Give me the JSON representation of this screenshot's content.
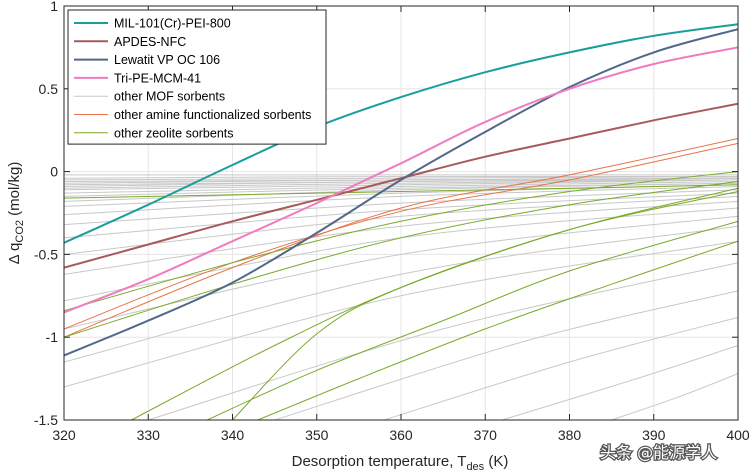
{
  "chart_data": {
    "type": "line",
    "xlabel": {
      "main": "Desorption temperature, T",
      "sub": "des",
      "unit": " (K)"
    },
    "ylabel": {
      "main": "Δ q",
      "sub": "CO2",
      "unit": " (mol/kg)"
    },
    "xlim": [
      320,
      400
    ],
    "ylim": [
      -1.5,
      1
    ],
    "xticks": [
      320,
      330,
      340,
      350,
      360,
      370,
      380,
      390,
      400
    ],
    "yticks": [
      -1.5,
      -1,
      -0.5,
      0,
      0.5,
      1
    ],
    "xtick_labels": [
      "320",
      "330",
      "340",
      "350",
      "360",
      "370",
      "380",
      "390",
      "400"
    ],
    "ytick_labels": [
      "-1.5",
      "-1",
      "-0.5",
      "0",
      "0.5",
      "1"
    ],
    "grid": true,
    "legend_position": "top-left",
    "legend": [
      {
        "label": "MIL-101(Cr)-PEI-800",
        "color": "#1a9e9a"
      },
      {
        "label": "APDES-NFC",
        "color": "#a85a5a"
      },
      {
        "label": "Lewatit VP OC 106",
        "color": "#52688a"
      },
      {
        "label": "Tri-PE-MCM-41",
        "color": "#f07cc0"
      },
      {
        "label": "other MOF sorbents",
        "color": "#c8c8c8"
      },
      {
        "label": "other amine functionalized sorbents",
        "color": "#e8734a"
      },
      {
        "label": "other zeolite sorbents",
        "color": "#7aaa2a"
      }
    ],
    "series": [
      {
        "name": "MIL-101(Cr)-PEI-800",
        "color": "#1a9e9a",
        "width": 2.0,
        "x": [
          320,
          330,
          340,
          350,
          360,
          370,
          380,
          390,
          400
        ],
        "y": [
          -0.43,
          -0.2,
          0.04,
          0.27,
          0.45,
          0.6,
          0.72,
          0.82,
          0.89
        ]
      },
      {
        "name": "APDES-NFC",
        "color": "#a85a5a",
        "width": 2.0,
        "x": [
          320,
          330,
          340,
          350,
          360,
          370,
          380,
          390,
          400
        ],
        "y": [
          -0.58,
          -0.44,
          -0.3,
          -0.17,
          -0.04,
          0.09,
          0.2,
          0.31,
          0.41
        ]
      },
      {
        "name": "Lewatit VP OC 106",
        "color": "#52688a",
        "width": 2.0,
        "x": [
          320,
          330,
          340,
          350,
          360,
          370,
          380,
          390,
          400
        ],
        "y": [
          -1.11,
          -0.9,
          -0.67,
          -0.37,
          -0.05,
          0.24,
          0.51,
          0.72,
          0.86
        ]
      },
      {
        "name": "Tri-PE-MCM-41",
        "color": "#f07cc0",
        "width": 2.0,
        "x": [
          320,
          330,
          340,
          350,
          360,
          370,
          380,
          390,
          400
        ],
        "y": [
          -0.85,
          -0.65,
          -0.42,
          -0.19,
          0.05,
          0.3,
          0.5,
          0.65,
          0.75
        ]
      },
      {
        "name": "",
        "color": "#c8c8c8",
        "width": 1.0,
        "x": [
          320,
          360,
          400
        ],
        "y": [
          -0.02,
          -0.02,
          -0.02
        ]
      },
      {
        "name": "",
        "color": "#c8c8c8",
        "width": 1.0,
        "x": [
          320,
          360,
          400
        ],
        "y": [
          -0.04,
          -0.03,
          -0.03
        ]
      },
      {
        "name": "",
        "color": "#c8c8c8",
        "width": 1.0,
        "x": [
          320,
          360,
          400
        ],
        "y": [
          -0.05,
          -0.04,
          -0.03
        ]
      },
      {
        "name": "",
        "color": "#c8c8c8",
        "width": 1.0,
        "x": [
          320,
          360,
          400
        ],
        "y": [
          -0.06,
          -0.05,
          -0.04
        ]
      },
      {
        "name": "",
        "color": "#c8c8c8",
        "width": 1.0,
        "x": [
          320,
          360,
          400
        ],
        "y": [
          -0.07,
          -0.05,
          -0.04
        ]
      },
      {
        "name": "",
        "color": "#c8c8c8",
        "width": 1.0,
        "x": [
          320,
          360,
          400
        ],
        "y": [
          -0.08,
          -0.06,
          -0.04
        ]
      },
      {
        "name": "",
        "color": "#c8c8c8",
        "width": 1.0,
        "x": [
          320,
          360,
          400
        ],
        "y": [
          -0.09,
          -0.06,
          -0.05
        ]
      },
      {
        "name": "",
        "color": "#c8c8c8",
        "width": 1.0,
        "x": [
          320,
          360,
          400
        ],
        "y": [
          -0.1,
          -0.07,
          -0.05
        ]
      },
      {
        "name": "",
        "color": "#c8c8c8",
        "width": 1.0,
        "x": [
          320,
          360,
          400
        ],
        "y": [
          -0.11,
          -0.08,
          -0.05
        ]
      },
      {
        "name": "",
        "color": "#c8c8c8",
        "width": 1.0,
        "x": [
          320,
          360,
          400
        ],
        "y": [
          -0.13,
          -0.09,
          -0.06
        ]
      },
      {
        "name": "",
        "color": "#c8c8c8",
        "width": 1.0,
        "x": [
          320,
          360,
          400
        ],
        "y": [
          -0.15,
          -0.1,
          -0.07
        ]
      },
      {
        "name": "",
        "color": "#c8c8c8",
        "width": 1.0,
        "x": [
          320,
          360,
          400
        ],
        "y": [
          -0.18,
          -0.11,
          -0.07
        ]
      },
      {
        "name": "",
        "color": "#c8c8c8",
        "width": 1.0,
        "x": [
          320,
          360,
          400
        ],
        "y": [
          -0.21,
          -0.13,
          -0.08
        ]
      },
      {
        "name": "",
        "color": "#c8c8c8",
        "width": 1.0,
        "x": [
          320,
          360,
          400
        ],
        "y": [
          -0.26,
          -0.15,
          -0.09
        ]
      },
      {
        "name": "",
        "color": "#c8c8c8",
        "width": 1.0,
        "x": [
          320,
          360,
          400
        ],
        "y": [
          -0.32,
          -0.19,
          -0.11
        ]
      },
      {
        "name": "",
        "color": "#c8c8c8",
        "width": 1.0,
        "x": [
          320,
          360,
          400
        ],
        "y": [
          -0.4,
          -0.23,
          -0.13
        ]
      },
      {
        "name": "",
        "color": "#c8c8c8",
        "width": 1.0,
        "x": [
          320,
          360,
          400
        ],
        "y": [
          -0.5,
          -0.27,
          -0.15
        ]
      },
      {
        "name": "",
        "color": "#c8c8c8",
        "width": 1.0,
        "x": [
          320,
          360,
          400
        ],
        "y": [
          -0.62,
          -0.33,
          -0.18
        ]
      },
      {
        "name": "",
        "color": "#c8c8c8",
        "width": 1.0,
        "x": [
          320,
          360,
          400
        ],
        "y": [
          -0.78,
          -0.4,
          -0.22
        ]
      },
      {
        "name": "",
        "color": "#c8c8c8",
        "width": 1.0,
        "x": [
          320,
          360,
          400
        ],
        "y": [
          -0.95,
          -0.5,
          -0.27
        ]
      },
      {
        "name": "",
        "color": "#c8c8c8",
        "width": 1.0,
        "x": [
          320,
          360,
          400
        ],
        "y": [
          -1.15,
          -0.62,
          -0.33
        ]
      },
      {
        "name": "",
        "color": "#c8c8c8",
        "width": 1.0,
        "x": [
          320,
          360,
          400
        ],
        "y": [
          -1.3,
          -0.75,
          -0.42
        ]
      },
      {
        "name": "",
        "color": "#c8c8c8",
        "width": 1.0,
        "x": [
          330,
          365,
          400
        ],
        "y": [
          -1.5,
          -0.95,
          -0.55
        ]
      },
      {
        "name": "",
        "color": "#c8c8c8",
        "width": 1.0,
        "x": [
          345,
          375,
          400
        ],
        "y": [
          -1.5,
          -1.02,
          -0.72
        ]
      },
      {
        "name": "",
        "color": "#c8c8c8",
        "width": 1.0,
        "x": [
          358,
          380,
          400
        ],
        "y": [
          -1.5,
          -1.15,
          -0.88
        ]
      },
      {
        "name": "",
        "color": "#c8c8c8",
        "width": 1.0,
        "x": [
          372,
          388,
          400
        ],
        "y": [
          -1.5,
          -1.25,
          -1.05
        ]
      },
      {
        "name": "",
        "color": "#c8c8c8",
        "width": 1.0,
        "x": [
          385,
          393,
          400
        ],
        "y": [
          -1.5,
          -1.36,
          -1.22
        ]
      },
      {
        "name": "",
        "color": "#e8734a",
        "width": 1.0,
        "x": [
          320,
          340,
          360,
          380,
          400
        ],
        "y": [
          -1.0,
          -0.58,
          -0.22,
          -0.02,
          0.2
        ]
      },
      {
        "name": "",
        "color": "#e8734a",
        "width": 1.0,
        "x": [
          320,
          340,
          360,
          380,
          400
        ],
        "y": [
          -0.95,
          -0.55,
          -0.24,
          -0.05,
          0.17
        ]
      },
      {
        "name": "",
        "color": "#7aaa2a",
        "width": 1.0,
        "x": [
          320,
          340,
          360,
          380,
          400
        ],
        "y": [
          -0.84,
          -0.55,
          -0.3,
          -0.12,
          0.0
        ]
      },
      {
        "name": "",
        "color": "#7aaa2a",
        "width": 1.0,
        "x": [
          320,
          340,
          360,
          380,
          400
        ],
        "y": [
          -1.0,
          -0.68,
          -0.4,
          -0.2,
          -0.06
        ]
      },
      {
        "name": "",
        "color": "#7aaa2a",
        "width": 1.0,
        "x": [
          320,
          340,
          360,
          380,
          400
        ],
        "y": [
          -0.16,
          -0.14,
          -0.12,
          -0.1,
          -0.08
        ]
      },
      {
        "name": "",
        "color": "#7aaa2a",
        "width": 1.0,
        "x": [
          328,
          345,
          360,
          380,
          400
        ],
        "y": [
          -1.5,
          -1.05,
          -0.7,
          -0.35,
          -0.1
        ]
      },
      {
        "name": "",
        "color": "#7aaa2a",
        "width": 1.0,
        "x": [
          337,
          350,
          365,
          380,
          400
        ],
        "y": [
          -1.5,
          -1.2,
          -0.9,
          -0.6,
          -0.3
        ]
      },
      {
        "name": "",
        "color": "#7aaa2a",
        "width": 1.0,
        "x": [
          343,
          355,
          370,
          385,
          400
        ],
        "y": [
          -1.5,
          -1.25,
          -0.95,
          -0.68,
          -0.42
        ]
      },
      {
        "name": "",
        "color": "#7aaa2a",
        "width": 1.0,
        "x": [
          340,
          350,
          360,
          380,
          400
        ],
        "y": [
          -1.5,
          -0.98,
          -0.7,
          -0.35,
          -0.12
        ]
      }
    ]
  },
  "watermark": "头条 @能源学人"
}
